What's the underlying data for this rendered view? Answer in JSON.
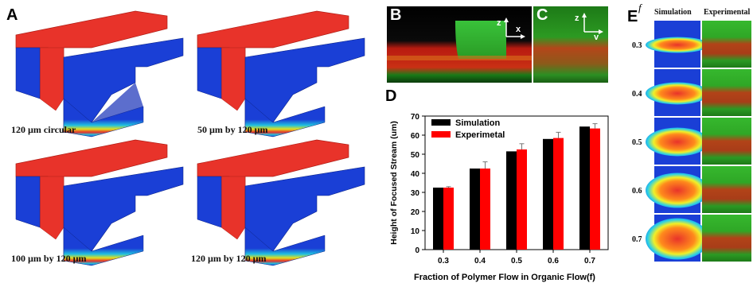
{
  "panel_labels": {
    "A": "A",
    "B": "B",
    "C": "C",
    "D": "D",
    "E": "E"
  },
  "panel_a": {
    "captions": [
      "120 µm circular",
      "50 µm by 120 µm",
      "100 µm by 120 µm",
      "120 µm by 120 µm"
    ]
  },
  "panel_b": {
    "axis_z": "z",
    "axis_x": "x"
  },
  "panel_c": {
    "axis_z": "z",
    "axis_y": "y"
  },
  "panel_e": {
    "f_symbol": "f",
    "col_simulation": "Simulation",
    "col_experimental": "Experimental",
    "rows": [
      "0.3",
      "0.4",
      "0.5",
      "0.6",
      "0.7"
    ]
  },
  "colors": {
    "simulation": "#000000",
    "experimental": "#ff0000",
    "sim_red": "#e8332a",
    "sim_blue": "#1a3fd6",
    "exp_green": "#2fb52f"
  },
  "chart_data": {
    "type": "bar",
    "categories": [
      "0.3",
      "0.4",
      "0.5",
      "0.6",
      "0.7"
    ],
    "series": [
      {
        "name": "Simulation",
        "values": [
          32.5,
          42.5,
          51.5,
          58,
          64.5
        ],
        "errors": [
          0,
          0,
          0,
          0,
          0
        ]
      },
      {
        "name": "Experimetal",
        "values": [
          32.5,
          42.5,
          52.5,
          58.5,
          63.5
        ],
        "errors": [
          0.5,
          3.5,
          3,
          3,
          2.5
        ]
      }
    ],
    "xlabel": "Fraction of Polymer Flow in Organic Flow(f)",
    "ylabel": "Height of Focused Stream (um)",
    "ylim": [
      0,
      70
    ],
    "yticks": [
      "0",
      "10",
      "20",
      "30",
      "40",
      "50",
      "60",
      "70"
    ],
    "legend_position": "top-left",
    "grid": false
  }
}
